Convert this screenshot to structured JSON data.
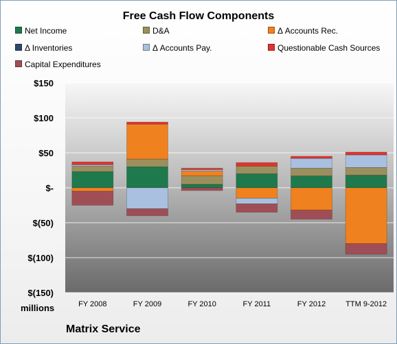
{
  "chart_data": {
    "type": "bar",
    "stacked": true,
    "title": "Free Cash Flow Components",
    "units_label": "millions",
    "company": "Matrix Service",
    "categories": [
      "FY 2008",
      "FY 2009",
      "FY 2010",
      "FY 2011",
      "FY 2012",
      "TTM 9-2012"
    ],
    "ylim": [
      -150,
      150
    ],
    "yticks": [
      {
        "value": 150,
        "label": "$150"
      },
      {
        "value": 100,
        "label": "$100"
      },
      {
        "value": 50,
        "label": "$50"
      },
      {
        "value": 0,
        "label": "$-"
      },
      {
        "value": -50,
        "label": "$(50)"
      },
      {
        "value": -100,
        "label": "$(100)"
      },
      {
        "value": -150,
        "label": "$(150)"
      }
    ],
    "grid": true,
    "legend_position": "top",
    "series": [
      {
        "name": "Net Income",
        "color": "#1e7a4c",
        "values": [
          23,
          30,
          5,
          20,
          17,
          18
        ]
      },
      {
        "name": "D&A",
        "color": "#9c8f5e",
        "values": [
          8,
          11,
          12,
          11,
          11,
          11
        ]
      },
      {
        "name": "Δ Accounts Rec.",
        "color": "#f0811f",
        "values": [
          -5,
          50,
          7,
          -15,
          -32,
          -80
        ]
      },
      {
        "name": "Δ Inventories",
        "color": "#2e4a6b",
        "values": [
          0,
          0,
          0,
          0,
          0,
          0
        ]
      },
      {
        "name": "Δ Accounts Pay.",
        "color": "#a9c0e0",
        "values": [
          2,
          -30,
          2,
          -8,
          14,
          18
        ]
      },
      {
        "name": "Questionable Cash Sources",
        "color": "#e0342f",
        "values": [
          4,
          3,
          2,
          5,
          3,
          4
        ]
      },
      {
        "name": "Capital Expenditures",
        "color": "#a04e56",
        "values": [
          -20,
          -10,
          -4,
          -12,
          -13,
          -15
        ]
      }
    ]
  }
}
